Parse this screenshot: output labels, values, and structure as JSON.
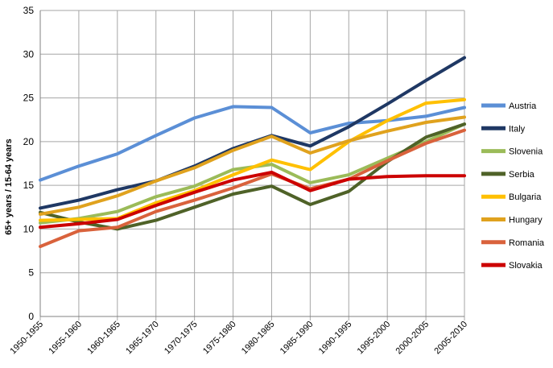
{
  "chart_data": {
    "type": "line",
    "title": "",
    "xlabel": "",
    "ylabel": "65+ years / 15-64 years",
    "ylim": [
      0,
      35
    ],
    "yticks": [
      0,
      5,
      10,
      15,
      20,
      25,
      30,
      35
    ],
    "grid": true,
    "legend": "right",
    "categories": [
      "1950-1955",
      "1955-1960",
      "1960-1965",
      "1965-1970",
      "1970-1975",
      "1975-1980",
      "1980-1985",
      "1985-1990",
      "1990-1995",
      "1995-2000",
      "2000-2005",
      "2005-2010"
    ],
    "series": [
      {
        "name": "Austria",
        "color": "#5b8fd6",
        "values": [
          15.6,
          17.2,
          18.6,
          20.7,
          22.7,
          24.0,
          23.9,
          21.0,
          22.1,
          22.4,
          22.9,
          23.9
        ]
      },
      {
        "name": "Italy",
        "color": "#1f3864",
        "values": [
          12.4,
          13.3,
          14.5,
          15.5,
          17.2,
          19.2,
          20.7,
          19.5,
          21.7,
          24.3,
          27.0,
          29.6
        ]
      },
      {
        "name": "Slovenia",
        "color": "#9bbb59",
        "values": [
          10.7,
          11.2,
          12.0,
          13.7,
          14.9,
          16.8,
          17.4,
          15.3,
          16.2,
          18.1,
          20.0,
          22.0
        ]
      },
      {
        "name": "Serbia",
        "color": "#4f6228",
        "values": [
          11.9,
          10.8,
          10.0,
          11.0,
          12.5,
          14.0,
          14.9,
          12.8,
          14.3,
          17.7,
          20.5,
          22.0
        ]
      },
      {
        "name": "Bulgaria",
        "color": "#ffc000",
        "values": [
          11.0,
          11.1,
          11.2,
          13.0,
          14.4,
          16.2,
          17.9,
          16.8,
          20.0,
          22.4,
          24.4,
          24.8
        ]
      },
      {
        "name": "Hungary",
        "color": "#e0a21e",
        "values": [
          11.7,
          12.5,
          13.8,
          15.5,
          17.0,
          19.0,
          20.6,
          18.7,
          20.1,
          21.2,
          22.2,
          22.8
        ]
      },
      {
        "name": "Romania",
        "color": "#d9623c",
        "values": [
          8.0,
          9.8,
          10.2,
          12.0,
          13.3,
          14.7,
          16.3,
          14.6,
          15.7,
          17.8,
          19.8,
          21.3
        ]
      },
      {
        "name": "Slovakia",
        "color": "#cc0000",
        "values": [
          10.2,
          10.6,
          11.1,
          12.7,
          14.2,
          15.6,
          16.5,
          14.4,
          15.7,
          16.0,
          16.1,
          16.1
        ]
      }
    ]
  }
}
